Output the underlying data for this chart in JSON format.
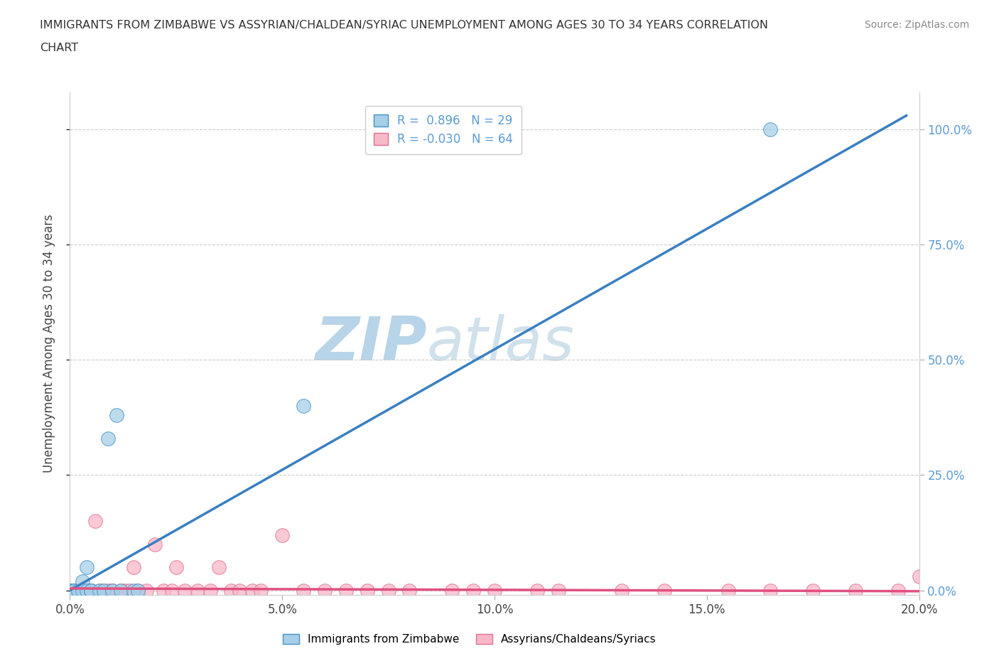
{
  "title_line1": "IMMIGRANTS FROM ZIMBABWE VS ASSYRIAN/CHALDEAN/SYRIAC UNEMPLOYMENT AMONG AGES 30 TO 34 YEARS CORRELATION",
  "title_line2": "CHART",
  "source": "Source: ZipAtlas.com",
  "ylabel": "Unemployment Among Ages 30 to 34 years",
  "xlim": [
    0.0,
    0.2
  ],
  "ylim": [
    -0.01,
    1.08
  ],
  "xtick_vals": [
    0.0,
    0.05,
    0.1,
    0.15,
    0.2
  ],
  "xtick_labels": [
    "0.0%",
    "5.0%",
    "10.0%",
    "15.0%",
    "20.0%"
  ],
  "ytick_vals": [
    0.0,
    0.25,
    0.5,
    0.75,
    1.0
  ],
  "ytick_labels": [
    "0.0%",
    "25.0%",
    "50.0%",
    "75.0%",
    "100.0%"
  ],
  "blue_color": "#a8cfe8",
  "blue_edge_color": "#4292c6",
  "pink_color": "#f9b8c8",
  "pink_edge_color": "#e07090",
  "blue_line_color": "#3a7fc1",
  "pink_line_color": "#e05080",
  "blue_R": "0.896",
  "blue_N": "29",
  "pink_R": "-0.030",
  "pink_N": "64",
  "blue_line_x": [
    0.0,
    0.197
  ],
  "blue_line_y": [
    0.0,
    1.03
  ],
  "pink_line_x": [
    0.0,
    0.2
  ],
  "pink_line_y": [
    0.004,
    -0.002
  ],
  "watermark_zip": "ZIP",
  "watermark_atlas": "atlas",
  "watermark_color": "#d0e4f0",
  "legend1_label": "Immigrants from Zimbabwe",
  "legend2_label": "Assyrians/Chaldeans/Syriacs",
  "blue_scatter_x": [
    0.0,
    0.0,
    0.0,
    0.0,
    0.0,
    0.0,
    0.0,
    0.0,
    0.0,
    0.0,
    0.001,
    0.001,
    0.002,
    0.003,
    0.003,
    0.004,
    0.004,
    0.005,
    0.005,
    0.007,
    0.008,
    0.009,
    0.01,
    0.011,
    0.012,
    0.015,
    0.016,
    0.055,
    0.165
  ],
  "blue_scatter_y": [
    0.0,
    0.0,
    0.0,
    0.0,
    0.0,
    0.0,
    0.0,
    0.0,
    0.0,
    0.0,
    0.0,
    0.0,
    0.0,
    0.0,
    0.02,
    0.0,
    0.05,
    0.0,
    0.0,
    0.0,
    0.0,
    0.33,
    0.0,
    0.38,
    0.0,
    0.0,
    0.0,
    0.4,
    1.0
  ],
  "pink_scatter_x": [
    0.0,
    0.0,
    0.0,
    0.0,
    0.0,
    0.0,
    0.0,
    0.0,
    0.0,
    0.0,
    0.0,
    0.0,
    0.001,
    0.002,
    0.003,
    0.004,
    0.004,
    0.005,
    0.005,
    0.005,
    0.006,
    0.007,
    0.008,
    0.009,
    0.01,
    0.01,
    0.012,
    0.013,
    0.014,
    0.015,
    0.016,
    0.018,
    0.02,
    0.022,
    0.024,
    0.025,
    0.027,
    0.03,
    0.033,
    0.035,
    0.038,
    0.04,
    0.043,
    0.045,
    0.05,
    0.055,
    0.06,
    0.065,
    0.07,
    0.075,
    0.08,
    0.09,
    0.095,
    0.1,
    0.11,
    0.115,
    0.13,
    0.14,
    0.155,
    0.165,
    0.175,
    0.185,
    0.195,
    0.2
  ],
  "pink_scatter_y": [
    0.0,
    0.0,
    0.0,
    0.0,
    0.0,
    0.0,
    0.0,
    0.0,
    0.0,
    0.0,
    0.0,
    0.0,
    0.0,
    0.0,
    0.0,
    0.0,
    0.0,
    0.0,
    0.0,
    0.0,
    0.15,
    0.0,
    0.0,
    0.0,
    0.0,
    0.0,
    0.0,
    0.0,
    0.0,
    0.05,
    0.0,
    0.0,
    0.1,
    0.0,
    0.0,
    0.05,
    0.0,
    0.0,
    0.0,
    0.05,
    0.0,
    0.0,
    0.0,
    0.0,
    0.12,
    0.0,
    0.0,
    0.0,
    0.0,
    0.0,
    0.0,
    0.0,
    0.0,
    0.0,
    0.0,
    0.0,
    0.0,
    0.0,
    0.0,
    0.0,
    0.0,
    0.0,
    0.0,
    0.03
  ]
}
